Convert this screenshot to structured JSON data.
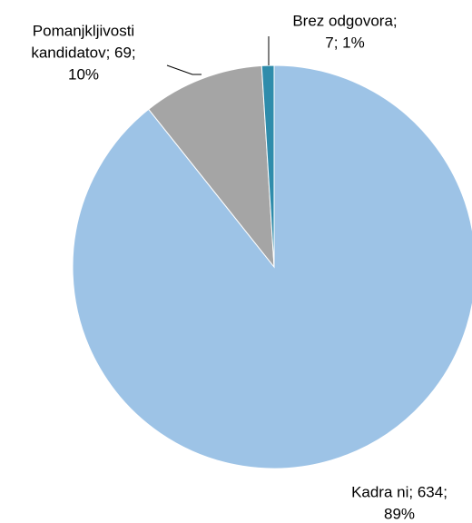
{
  "chart_data": {
    "type": "pie",
    "values": [
      634,
      69,
      7
    ],
    "value_labels": [
      [
        "Kadra ni; 634;",
        "89%"
      ],
      [
        "Pomanjkljivosti",
        "kandidatov; 69;",
        "10%"
      ],
      [
        "Brez odgovora;",
        "7; 1%"
      ]
    ],
    "colors": [
      "#9dc3e6",
      "#a5a5a5",
      "#2f8cab"
    ]
  }
}
